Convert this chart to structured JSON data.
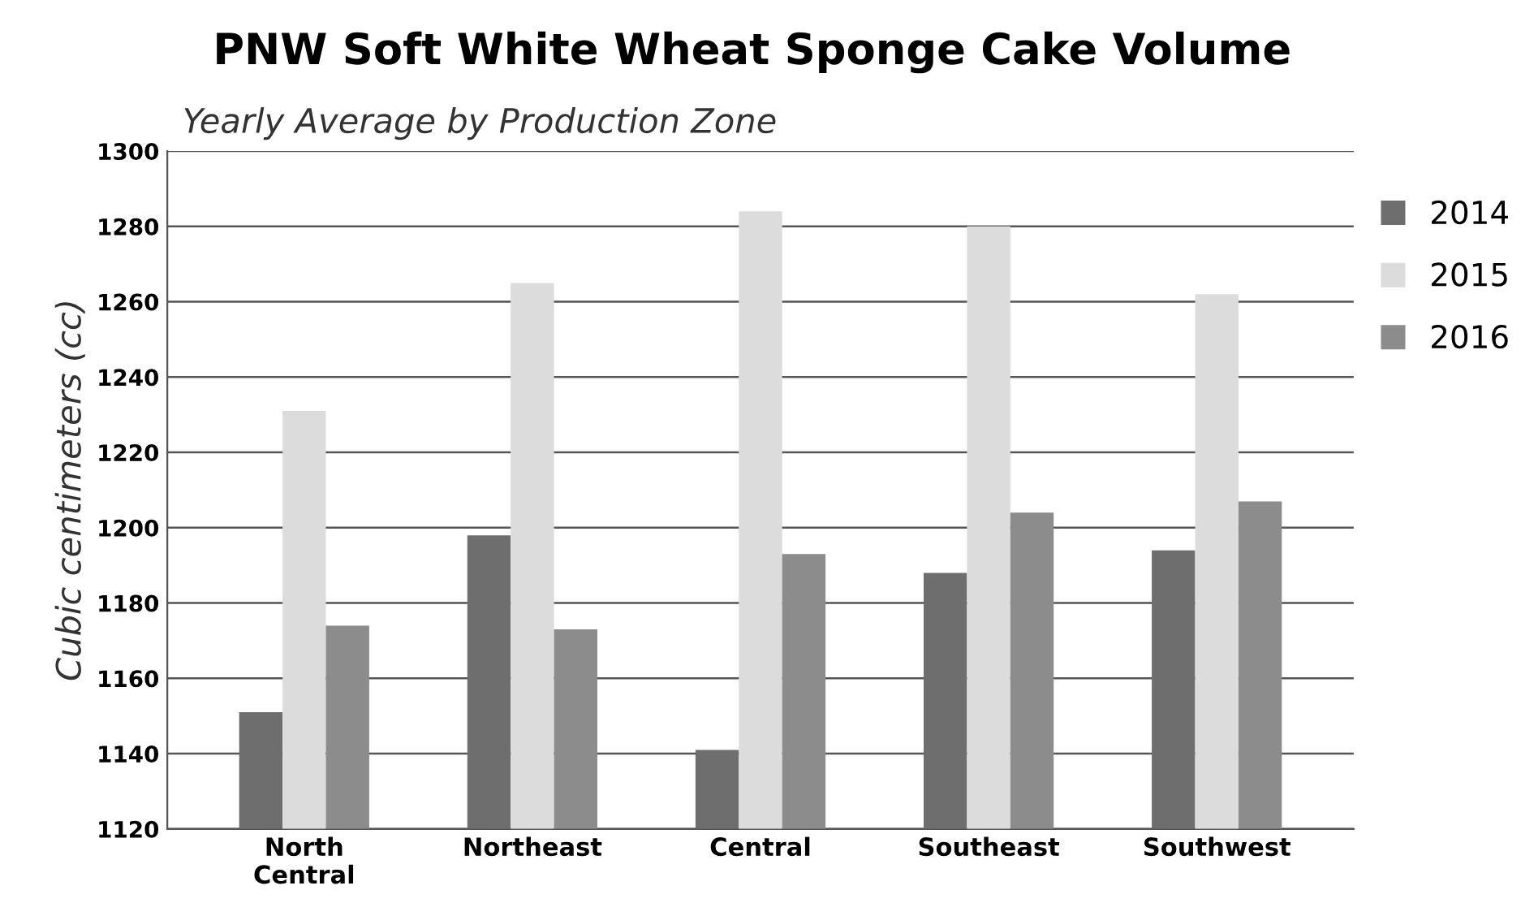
{
  "chart_data": {
    "type": "bar",
    "title": "PNW Soft White Wheat Sponge Cake Volume",
    "subtitle": "Yearly Average by Production Zone",
    "ylabel": "Cubic centimeters (cc)",
    "categories": [
      "North\nCentral",
      "Northeast",
      "Central",
      "Southeast",
      "Southwest"
    ],
    "series": [
      {
        "name": "2014",
        "color": "#6e6e6e",
        "values": [
          1151,
          1198,
          1141,
          1188,
          1194
        ]
      },
      {
        "name": "2015",
        "color": "#dcdcdc",
        "values": [
          1231,
          1265,
          1284,
          1280,
          1262
        ]
      },
      {
        "name": "2016",
        "color": "#8c8c8c",
        "values": [
          1174,
          1173,
          1193,
          1204,
          1207
        ]
      }
    ],
    "ylim": [
      1120,
      1300
    ],
    "yticks": [
      1120,
      1140,
      1160,
      1180,
      1200,
      1220,
      1240,
      1260,
      1280,
      1300
    ],
    "grid": "y",
    "legend": "right"
  }
}
